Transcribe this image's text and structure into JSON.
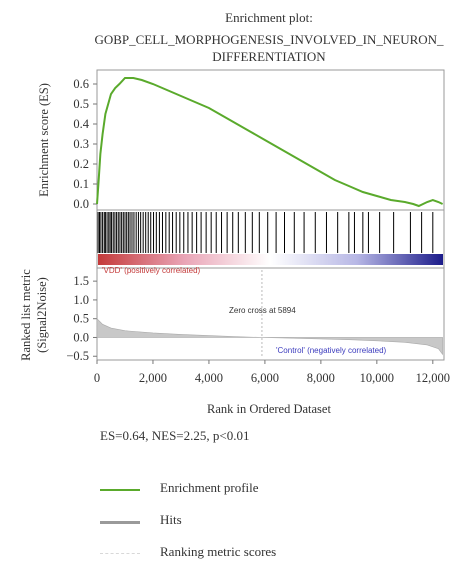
{
  "chart_data": {
    "type": "line",
    "title": "Enrichment plot:",
    "subtitle_lines": [
      "GOBP_CELL_MORPHOGENESIS_INVOLVED_IN_NEURON_",
      "DIFFERENTIATION"
    ],
    "xlabel": "Rank in Ordered Dataset",
    "xlim": [
      0,
      12400
    ],
    "x_ticks": [
      0,
      2000,
      4000,
      6000,
      8000,
      10000,
      12000
    ],
    "x_tick_labels": [
      "0",
      "2,000",
      "4,000",
      "6,000",
      "8,000",
      "10,000",
      "12,000"
    ],
    "enrichment": {
      "ylabel": "Enrichment score (ES)",
      "ylim": [
        -0.03,
        0.67
      ],
      "y_ticks": [
        0.0,
        0.1,
        0.2,
        0.3,
        0.4,
        0.5,
        0.6
      ],
      "y_tick_labels": [
        "0.0",
        "0.1",
        "0.2",
        "0.3",
        "0.4",
        "0.5",
        "0.6"
      ],
      "color": "#5aaa2c",
      "series": [
        {
          "x": 0,
          "y": 0.0
        },
        {
          "x": 60,
          "y": 0.12
        },
        {
          "x": 120,
          "y": 0.25
        },
        {
          "x": 200,
          "y": 0.35
        },
        {
          "x": 300,
          "y": 0.45
        },
        {
          "x": 400,
          "y": 0.5
        },
        {
          "x": 500,
          "y": 0.55
        },
        {
          "x": 650,
          "y": 0.58
        },
        {
          "x": 800,
          "y": 0.6
        },
        {
          "x": 1000,
          "y": 0.63
        },
        {
          "x": 1300,
          "y": 0.63
        },
        {
          "x": 1600,
          "y": 0.62
        },
        {
          "x": 2000,
          "y": 0.6
        },
        {
          "x": 2500,
          "y": 0.57
        },
        {
          "x": 3000,
          "y": 0.54
        },
        {
          "x": 3500,
          "y": 0.51
        },
        {
          "x": 4000,
          "y": 0.48
        },
        {
          "x": 4500,
          "y": 0.44
        },
        {
          "x": 5000,
          "y": 0.4
        },
        {
          "x": 5500,
          "y": 0.36
        },
        {
          "x": 6000,
          "y": 0.32
        },
        {
          "x": 6500,
          "y": 0.28
        },
        {
          "x": 7000,
          "y": 0.24
        },
        {
          "x": 7500,
          "y": 0.2
        },
        {
          "x": 8000,
          "y": 0.16
        },
        {
          "x": 8500,
          "y": 0.12
        },
        {
          "x": 9000,
          "y": 0.09
        },
        {
          "x": 9500,
          "y": 0.06
        },
        {
          "x": 10000,
          "y": 0.04
        },
        {
          "x": 10500,
          "y": 0.02
        },
        {
          "x": 11000,
          "y": 0.01
        },
        {
          "x": 11300,
          "y": 0.0
        },
        {
          "x": 11500,
          "y": -0.01
        },
        {
          "x": 11800,
          "y": 0.01
        },
        {
          "x": 12000,
          "y": 0.02
        },
        {
          "x": 12200,
          "y": 0.01
        },
        {
          "x": 12350,
          "y": 0.0
        }
      ]
    },
    "hits": [
      40,
      90,
      140,
      200,
      260,
      300,
      360,
      420,
      470,
      520,
      580,
      640,
      700,
      760,
      820,
      880,
      940,
      1000,
      1060,
      1120,
      1180,
      1250,
      1320,
      1400,
      1480,
      1560,
      1650,
      1740,
      1830,
      1920,
      2020,
      2120,
      2230,
      2340,
      2460,
      2580,
      2700,
      2830,
      2960,
      3100,
      3250,
      3400,
      3560,
      3720,
      3900,
      4080,
      4260,
      4450,
      4650,
      4850,
      5050,
      5300,
      5550,
      5800,
      6100,
      6400,
      6700,
      7050,
      7400,
      7800,
      8200,
      8600,
      9000,
      9200,
      9500,
      9700,
      10100,
      10600,
      11200,
      11600,
      12000
    ],
    "heatmap_gradient": [
      "#c43a3a",
      "#e9a4b6",
      "#ffffff",
      "#b7b7e5",
      "#1b1b8a"
    ],
    "annotations": {
      "positive_label": "'VDD' (positively correlated)",
      "negative_label": "'Control' (negatively correlated)",
      "zero_cross": "Zero cross at 5894",
      "positive_color": "#c43a3a",
      "negative_color": "#3b3bbd"
    },
    "ranked_metric": {
      "ylabel_line1": "Ranked list metric",
      "ylabel_line2": "(Signal2Noise)",
      "ylim": [
        -0.6,
        1.85
      ],
      "y_ticks": [
        -0.5,
        0.0,
        0.5,
        1.0,
        1.5
      ],
      "y_tick_labels": [
        "−0.5",
        "0.0",
        "0.5",
        "1.0",
        "1.5"
      ],
      "zero_cross": 5894,
      "fill_color": "#c8c8c8",
      "series": [
        {
          "x": 0,
          "y": 0.5
        },
        {
          "x": 200,
          "y": 0.35
        },
        {
          "x": 500,
          "y": 0.25
        },
        {
          "x": 1000,
          "y": 0.18
        },
        {
          "x": 2000,
          "y": 0.12
        },
        {
          "x": 3000,
          "y": 0.08
        },
        {
          "x": 4000,
          "y": 0.05
        },
        {
          "x": 5000,
          "y": 0.02
        },
        {
          "x": 5894,
          "y": 0.0
        },
        {
          "x": 7000,
          "y": -0.02
        },
        {
          "x": 8000,
          "y": -0.04
        },
        {
          "x": 9000,
          "y": -0.06
        },
        {
          "x": 10000,
          "y": -0.09
        },
        {
          "x": 11000,
          "y": -0.13
        },
        {
          "x": 11800,
          "y": -0.2
        },
        {
          "x": 12200,
          "y": -0.3
        },
        {
          "x": 12350,
          "y": -0.45
        }
      ]
    }
  },
  "stats": "ES=0.64, NES=2.25, p<0.01",
  "legend": [
    {
      "label": "Enrichment profile",
      "color": "#5aaa2c",
      "style": "solid"
    },
    {
      "label": "Hits",
      "color": "#9a9a9a",
      "style": "solid"
    },
    {
      "label": "Ranking metric scores",
      "color": "#d8d8d8",
      "style": "dashed"
    }
  ]
}
